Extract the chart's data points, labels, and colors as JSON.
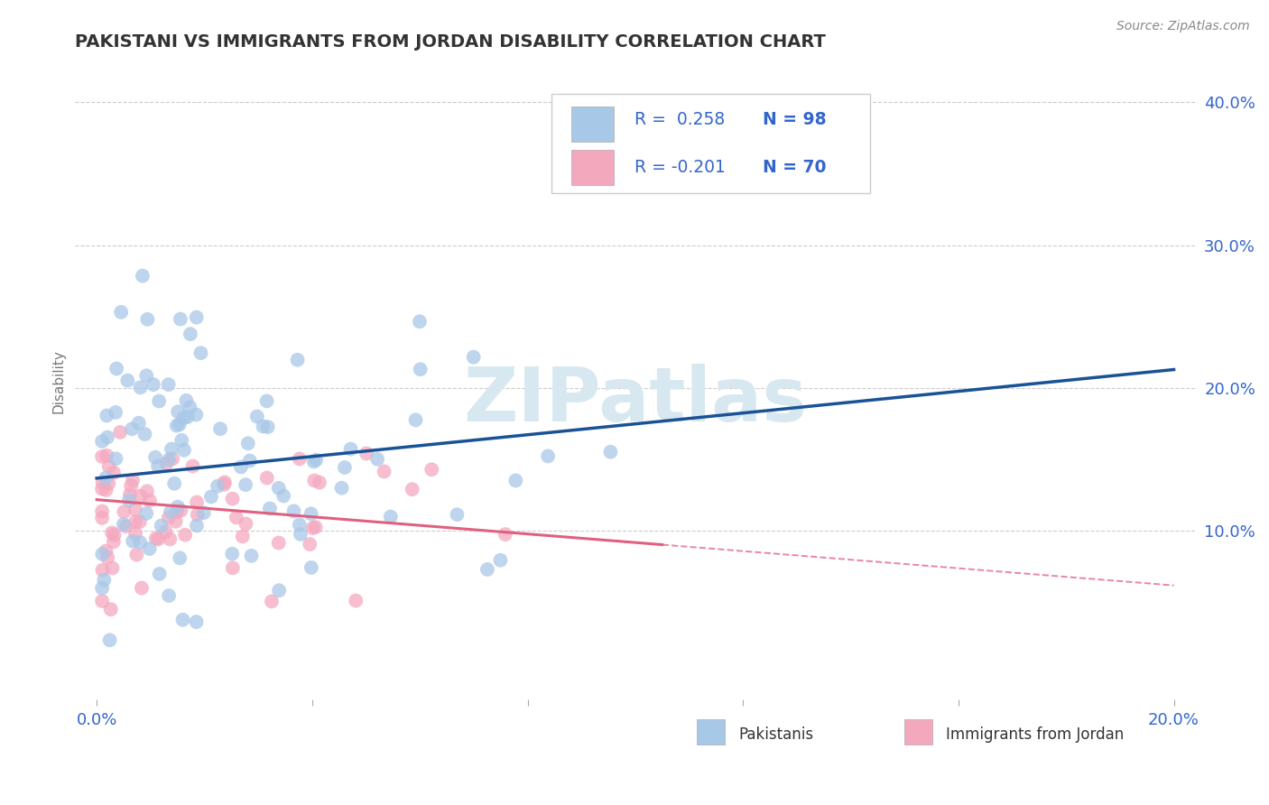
{
  "title": "PAKISTANI VS IMMIGRANTS FROM JORDAN DISABILITY CORRELATION CHART",
  "source": "Source: ZipAtlas.com",
  "ylabel": "Disability",
  "blue_color": "#a8c8e8",
  "pink_color": "#f4a8be",
  "blue_line_color": "#1a5296",
  "pink_line_color": "#e06080",
  "grid_color": "#cccccc",
  "background": "#ffffff",
  "legend_text_color": "#3366cc",
  "watermark_color": "#d8e8f0",
  "title_color": "#333333",
  "tick_color": "#3366cc",
  "ylabel_color": "#777777",
  "source_color": "#888888"
}
